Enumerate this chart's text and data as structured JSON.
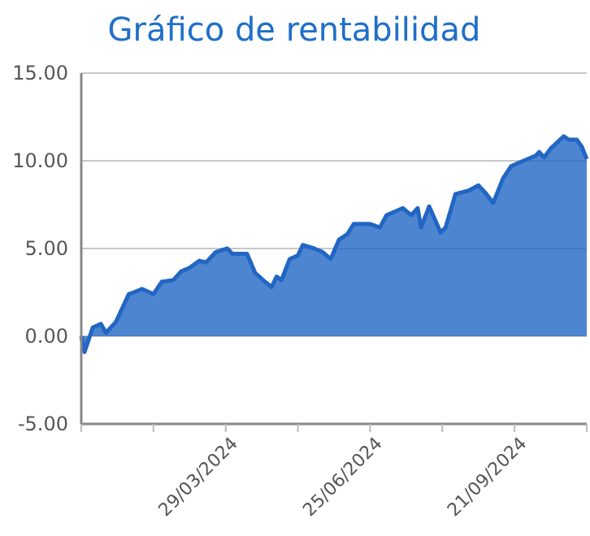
{
  "chart_data": {
    "type": "area",
    "title": "Gráfico de rentabilidad",
    "x": [
      "2024-01-01",
      "2024-01-03",
      "2024-01-08",
      "2024-01-13",
      "2024-01-16",
      "2024-01-22",
      "2024-01-30",
      "2024-02-02",
      "2024-02-07",
      "2024-02-14",
      "2024-02-19",
      "2024-02-26",
      "2024-03-02",
      "2024-03-07",
      "2024-03-13",
      "2024-03-17",
      "2024-03-23",
      "2024-03-30",
      "2024-04-02",
      "2024-04-11",
      "2024-04-16",
      "2024-04-22",
      "2024-04-26",
      "2024-04-29",
      "2024-05-02",
      "2024-05-07",
      "2024-05-12",
      "2024-05-15",
      "2024-05-22",
      "2024-05-27",
      "2024-06-01",
      "2024-06-06",
      "2024-06-11",
      "2024-06-15",
      "2024-06-25",
      "2024-07-01",
      "2024-07-05",
      "2024-07-15",
      "2024-07-20",
      "2024-07-24",
      "2024-07-26",
      "2024-07-31",
      "2024-08-07",
      "2024-08-10",
      "2024-08-16",
      "2024-08-24",
      "2024-08-30",
      "2024-09-03",
      "2024-09-08",
      "2024-09-14",
      "2024-09-19",
      "2024-10-04",
      "2024-10-06",
      "2024-10-09",
      "2024-10-13",
      "2024-10-21",
      "2024-10-24",
      "2024-10-29",
      "2024-11-01",
      "2024-11-04"
    ],
    "series": [
      {
        "color": "#2266c4",
        "values": [
          0,
          -0.9,
          0.5,
          0.7,
          0.2,
          0.8,
          2.4,
          2.5,
          2.7,
          2.4,
          3.1,
          3.2,
          3.7,
          3.9,
          4.3,
          4.2,
          4.8,
          5.0,
          4.7,
          4.7,
          3.6,
          3.1,
          2.8,
          3.4,
          3.2,
          4.4,
          4.6,
          5.2,
          5.0,
          4.8,
          4.4,
          5.5,
          5.8,
          6.4,
          6.4,
          6.2,
          6.9,
          7.3,
          6.9,
          7.3,
          6.2,
          7.4,
          5.9,
          6.2,
          8.1,
          8.3,
          8.6,
          8.2,
          7.6,
          9.0,
          9.7,
          10.3,
          10.5,
          10.2,
          10.7,
          11.4,
          11.2,
          11.2,
          10.8,
          10.1
        ]
      }
    ],
    "xlim": [
      "2024-01-01",
      "2024-11-04"
    ],
    "xticks": [
      {
        "value": "2024-01-01",
        "label": null
      },
      {
        "value": "2024-02-14",
        "label": null
      },
      {
        "value": "2024-03-29",
        "label": "29/03/2024"
      },
      {
        "value": "2024-05-12",
        "label": null
      },
      {
        "value": "2024-06-25",
        "label": "25/06/2024"
      },
      {
        "value": "2024-08-08",
        "label": null
      },
      {
        "value": "2024-09-21",
        "label": "21/09/2024"
      },
      {
        "value": "2024-11-04",
        "label": null
      }
    ],
    "ylim": [
      -5,
      15
    ],
    "yticks": [
      {
        "value": -5,
        "label": "-5.00"
      },
      {
        "value": 0,
        "label": "0.00"
      },
      {
        "value": 5,
        "label": "5.00"
      },
      {
        "value": 10,
        "label": "10.00"
      },
      {
        "value": 15,
        "label": "15.00"
      }
    ],
    "grid": "y"
  }
}
